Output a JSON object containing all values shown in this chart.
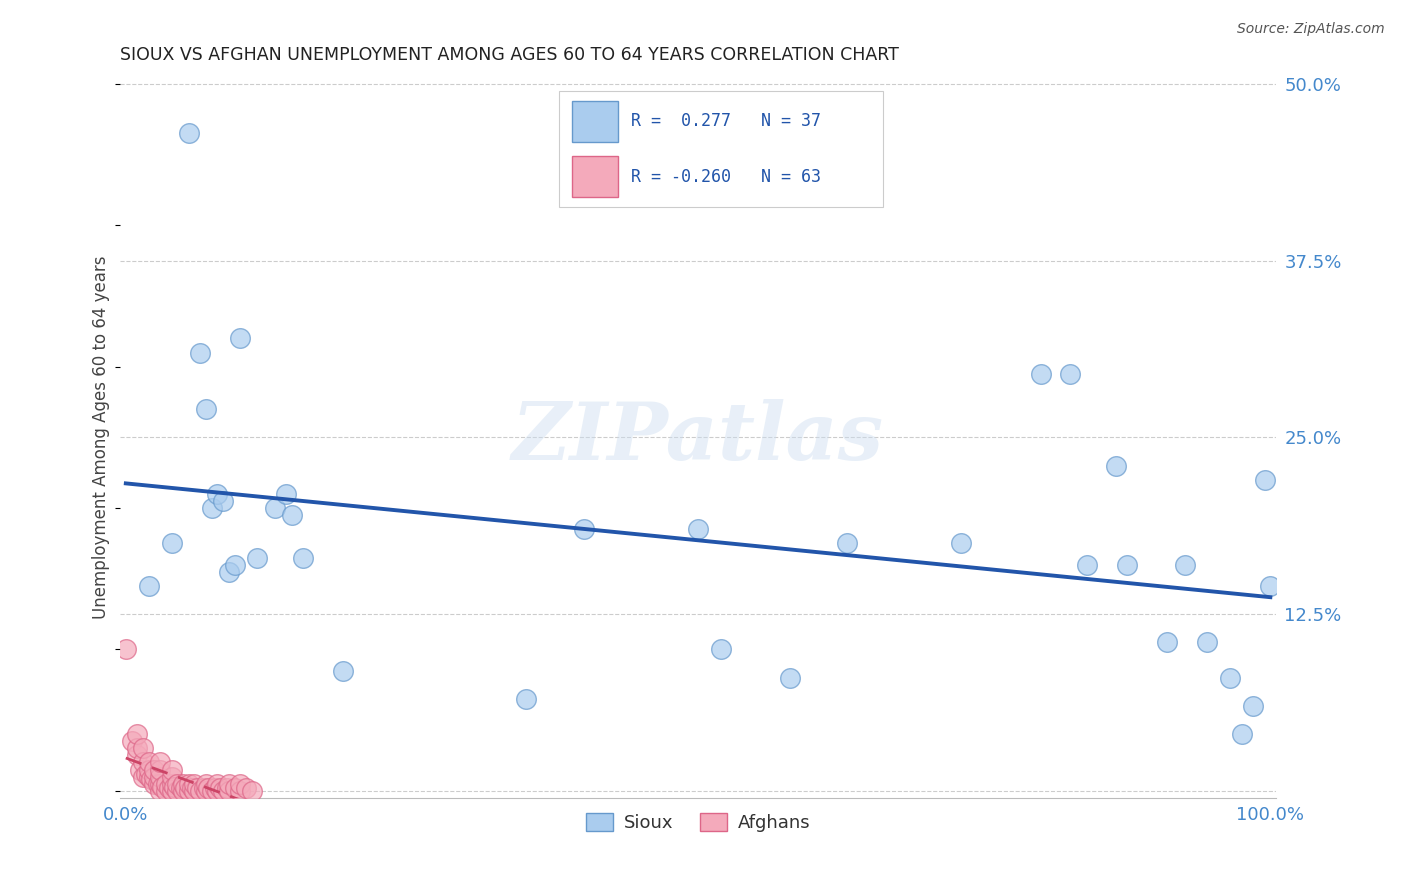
{
  "title": "SIOUX VS AFGHAN UNEMPLOYMENT AMONG AGES 60 TO 64 YEARS CORRELATION CHART",
  "source": "Source: ZipAtlas.com",
  "ylabel": "Unemployment Among Ages 60 to 64 years",
  "xlim": [
    -0.005,
    1.005
  ],
  "ylim": [
    -0.005,
    0.505
  ],
  "yticks": [
    0.0,
    0.125,
    0.25,
    0.375,
    0.5
  ],
  "yticklabels": [
    "",
    "12.5%",
    "25.0%",
    "37.5%",
    "50.0%"
  ],
  "sioux_R": 0.277,
  "sioux_N": 37,
  "afghan_R": -0.26,
  "afghan_N": 63,
  "sioux_color": "#aaccee",
  "afghan_color": "#f4aabb",
  "sioux_edge_color": "#6699cc",
  "afghan_edge_color": "#dd6688",
  "sioux_line_color": "#2255aa",
  "afghan_line_color": "#cc4466",
  "watermark_text": "ZIPatlas",
  "legend_sioux_text": "R =  0.277   N = 37",
  "legend_afghan_text": "R = -0.260   N = 63",
  "sioux_x": [
    0.02,
    0.04,
    0.055,
    0.065,
    0.07,
    0.075,
    0.08,
    0.085,
    0.09,
    0.095,
    0.1,
    0.115,
    0.13,
    0.14,
    0.145,
    0.155,
    0.19,
    0.35,
    0.4,
    0.5,
    0.52,
    0.58,
    0.63,
    0.73,
    0.8,
    0.825,
    0.84,
    0.865,
    0.875,
    0.91,
    0.925,
    0.945,
    0.965,
    0.975,
    0.985,
    0.995,
    1.0
  ],
  "sioux_y": [
    0.145,
    0.175,
    0.465,
    0.31,
    0.27,
    0.2,
    0.21,
    0.205,
    0.155,
    0.16,
    0.32,
    0.165,
    0.2,
    0.21,
    0.195,
    0.165,
    0.085,
    0.065,
    0.185,
    0.185,
    0.1,
    0.08,
    0.175,
    0.175,
    0.295,
    0.295,
    0.16,
    0.23,
    0.16,
    0.105,
    0.16,
    0.105,
    0.08,
    0.04,
    0.06,
    0.22,
    0.145
  ],
  "afghan_x": [
    0.0,
    0.005,
    0.01,
    0.01,
    0.01,
    0.012,
    0.015,
    0.015,
    0.015,
    0.018,
    0.02,
    0.02,
    0.02,
    0.022,
    0.025,
    0.025,
    0.025,
    0.028,
    0.03,
    0.03,
    0.03,
    0.03,
    0.03,
    0.032,
    0.035,
    0.035,
    0.038,
    0.04,
    0.04,
    0.04,
    0.04,
    0.042,
    0.045,
    0.045,
    0.048,
    0.05,
    0.05,
    0.052,
    0.055,
    0.055,
    0.058,
    0.06,
    0.06,
    0.062,
    0.065,
    0.068,
    0.07,
    0.07,
    0.072,
    0.075,
    0.078,
    0.08,
    0.08,
    0.082,
    0.085,
    0.088,
    0.09,
    0.09,
    0.095,
    0.1,
    0.1,
    0.105,
    0.11
  ],
  "afghan_y": [
    0.1,
    0.035,
    0.025,
    0.03,
    0.04,
    0.015,
    0.01,
    0.02,
    0.03,
    0.012,
    0.01,
    0.015,
    0.02,
    0.008,
    0.005,
    0.01,
    0.015,
    0.005,
    0.0,
    0.005,
    0.01,
    0.015,
    0.02,
    0.003,
    0.0,
    0.005,
    0.002,
    0.0,
    0.005,
    0.01,
    0.015,
    0.003,
    0.0,
    0.005,
    0.002,
    0.0,
    0.005,
    0.002,
    0.0,
    0.005,
    0.002,
    0.0,
    0.005,
    0.002,
    0.0,
    0.002,
    0.0,
    0.005,
    0.002,
    0.0,
    0.002,
    0.0,
    0.005,
    0.002,
    0.0,
    0.002,
    0.0,
    0.005,
    0.002,
    0.0,
    0.005,
    0.002,
    0.0
  ]
}
